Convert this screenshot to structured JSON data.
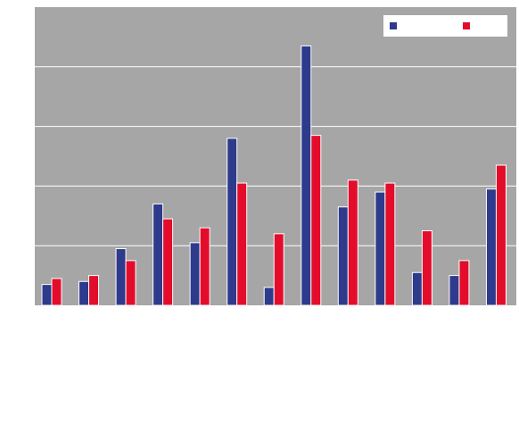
{
  "chart_data": {
    "type": "bar",
    "categories": [
      "",
      "",
      "",
      "",
      "",
      "",
      "",
      "",
      "",
      "",
      "",
      "",
      ""
    ],
    "series": [
      {
        "color": "#2e3a8c",
        "values": [
          7,
          8,
          19,
          34,
          21,
          56,
          6,
          87,
          33,
          38,
          11,
          10,
          39
        ]
      },
      {
        "color": "#e30d2b",
        "values": [
          9,
          10,
          15,
          29,
          26,
          41,
          24,
          57,
          42,
          41,
          25,
          15,
          47
        ]
      }
    ],
    "ylim": [
      0,
      100
    ],
    "yticks": [
      0,
      20,
      40,
      60,
      80,
      100
    ],
    "grid": true,
    "legend": "top-right",
    "plot_background": "#a6a6a6",
    "grid_color": "#ffffff"
  }
}
